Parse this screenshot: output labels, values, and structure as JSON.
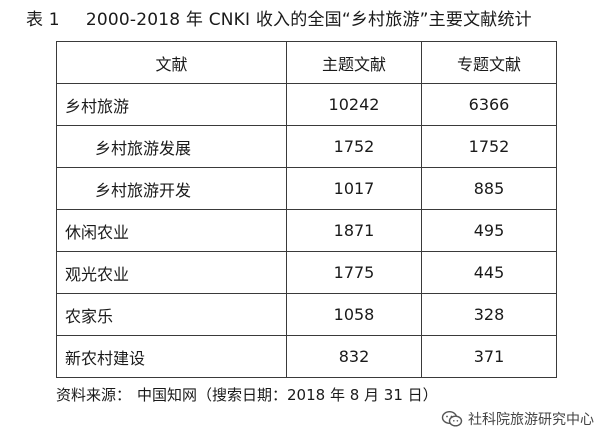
{
  "caption": {
    "label": "表 1",
    "text": "2000-2018 年 CNKI 收入的全国“乡村旅游”主要文献统计"
  },
  "table": {
    "headers": [
      "文献",
      "主题文献",
      "专题文献"
    ],
    "rows": [
      {
        "name": "乡村旅游",
        "subject": "10242",
        "special": "6366",
        "indent": false
      },
      {
        "name": "乡村旅游发展",
        "subject": "1752",
        "special": "1752",
        "indent": true
      },
      {
        "name": "乡村旅游开发",
        "subject": "1017",
        "special": "885",
        "indent": true
      },
      {
        "name": "休闲农业",
        "subject": "1871",
        "special": "495",
        "indent": false
      },
      {
        "name": "观光农业",
        "subject": "1775",
        "special": "445",
        "indent": false
      },
      {
        "name": "农家乐",
        "subject": "1058",
        "special": "328",
        "indent": false
      },
      {
        "name": "新农村建设",
        "subject": "832",
        "special": "371",
        "indent": false
      }
    ]
  },
  "source": {
    "label": "资料来源：",
    "text": "中国知网（搜索日期：2018 年 8 月 31 日）"
  },
  "watermark": {
    "text": "社科院旅游研究中心",
    "icon": "wechat-account-icon"
  },
  "colors": {
    "text": "#1a1a1a",
    "border": "#3a3a3a",
    "background": "#ffffff"
  }
}
